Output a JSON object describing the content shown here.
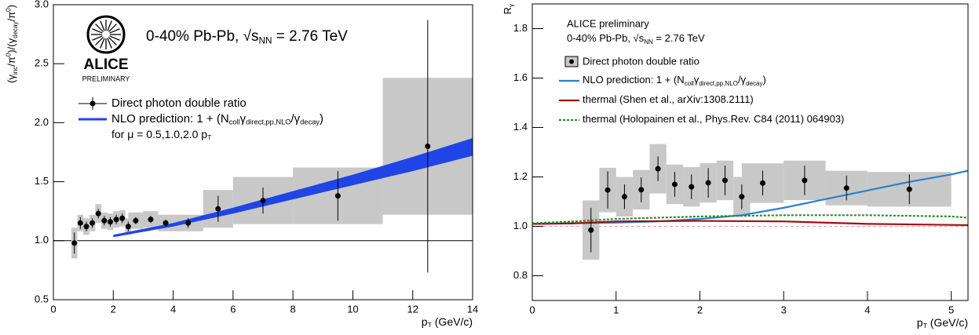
{
  "chart_data": [
    {
      "type": "errorbar",
      "logo": {
        "title": "ALICE",
        "subtitle": "PRELIMINARY"
      },
      "annotation_parts": [
        "0-40%  Pb-Pb, √s",
        "NN",
        " = 2.76 TeV"
      ],
      "xlabel_parts": [
        "p",
        "T",
        " (GeV/c)"
      ],
      "ylabel_parts": [
        "(γ",
        "inc",
        "/π",
        "0",
        ")/(γ",
        "decay",
        "/π",
        "0",
        ")"
      ],
      "xlim": [
        0,
        14
      ],
      "ylim": [
        0.5,
        3.0
      ],
      "xticks": [
        0,
        2,
        4,
        6,
        8,
        10,
        12,
        14
      ],
      "yticks": [
        0.5,
        {
          "value": 1,
          "label": "1.0"
        },
        1.5,
        {
          "value": 2,
          "label": "2.0"
        },
        2.5,
        {
          "value": 3,
          "label": "3.0"
        }
      ],
      "hline": 1,
      "series": [
        {
          "name": "Direct photon double ratio",
          "color": "#000000",
          "sys_color": "#c8c8c8",
          "x": [
            0.7,
            0.9,
            1.1,
            1.3,
            1.5,
            1.7,
            1.9,
            2.1,
            2.3,
            2.5,
            2.75,
            3.25,
            3.75,
            4.5,
            5.5,
            7,
            9.5,
            12.5
          ],
          "values": [
            0.98,
            1.15,
            1.12,
            1.15,
            1.23,
            1.17,
            1.16,
            1.18,
            1.19,
            1.12,
            1.17,
            1.18,
            1.15,
            1.15,
            1.27,
            1.34,
            1.38,
            1.8
          ],
          "errors": [
            0.09,
            0.05,
            0.04,
            0.04,
            0.04,
            0.04,
            0.04,
            0.04,
            0.04,
            0.04,
            0.03,
            0.03,
            0.03,
            0.04,
            0.11,
            0.11,
            0.21,
            1.07
          ],
          "sys_errors": [
            0.13,
            0.07,
            0.07,
            0.07,
            0.08,
            0.07,
            0.07,
            0.07,
            0.07,
            0.07,
            0.07,
            0.07,
            0.07,
            0.07,
            0.16,
            0.2,
            0.24,
            0.58
          ],
          "xerr": [
            0.1,
            0.1,
            0.1,
            0.1,
            0.1,
            0.1,
            0.1,
            0.1,
            0.1,
            0.1,
            0.25,
            0.25,
            0.25,
            0.5,
            0.5,
            1,
            1.5,
            1.5
          ]
        }
      ],
      "band": {
        "name_parts": [
          "NLO prediction: 1 + (N",
          "coll",
          "γ",
          "direct,pp,NLO",
          "/γ",
          "decay",
          ")"
        ],
        "note_parts": [
          "for μ = 0.5,1.0,2.0 p",
          "T"
        ],
        "color": "#1f45e6",
        "x": [
          2,
          4,
          6,
          8,
          10,
          12,
          14
        ],
        "low": [
          1.03,
          1.12,
          1.23,
          1.35,
          1.47,
          1.59,
          1.72
        ],
        "high": [
          1.05,
          1.15,
          1.28,
          1.42,
          1.56,
          1.71,
          1.87
        ]
      }
    },
    {
      "type": "errorbar",
      "annotation": "ALICE preliminary",
      "annotation_parts": [
        "0-40% Pb-Pb, √s",
        "NN",
        " = 2.76 TeV"
      ],
      "xlabel_parts": [
        "p",
        "T",
        " (GeV/c)"
      ],
      "ylabel_parts": [
        "R",
        "γ"
      ],
      "xlim": [
        0,
        5.2
      ],
      "ylim": [
        0.7,
        1.9
      ],
      "xticks": [
        0,
        1,
        2,
        3,
        4,
        5
      ],
      "yticks": [
        0.8,
        {
          "value": 1,
          "label": "1.0"
        },
        1.2,
        1.4,
        1.6,
        1.8
      ],
      "hline": 1,
      "series": [
        {
          "name": "Direct photon double ratio",
          "color": "#000000",
          "sys_color": "#c8c8c8",
          "x": [
            0.7,
            0.9,
            1.1,
            1.3,
            1.5,
            1.7,
            1.9,
            2.1,
            2.3,
            2.5,
            2.75,
            3.25,
            3.75,
            4.5
          ],
          "values": [
            0.985,
            1.147,
            1.12,
            1.148,
            1.233,
            1.17,
            1.16,
            1.176,
            1.186,
            1.12,
            1.175,
            1.186,
            1.155,
            1.15
          ],
          "errors": [
            0.09,
            0.075,
            0.05,
            0.05,
            0.05,
            0.05,
            0.05,
            0.06,
            0.06,
            0.05,
            0.05,
            0.06,
            0.05,
            0.06
          ],
          "sys_errors": [
            0.12,
            0.09,
            0.08,
            0.08,
            0.1,
            0.08,
            0.08,
            0.08,
            0.08,
            0.08,
            0.08,
            0.08,
            0.07,
            0.07
          ],
          "xerr": [
            0.1,
            0.1,
            0.1,
            0.1,
            0.1,
            0.1,
            0.1,
            0.1,
            0.1,
            0.1,
            0.25,
            0.25,
            0.25,
            0.5
          ]
        }
      ],
      "curves": [
        {
          "name_parts": [
            "NLO prediction: 1 + (N",
            "coll",
            "γ",
            "direct,pp,NLO",
            "/γ",
            "decay",
            ")"
          ],
          "color": "#2a7fcf",
          "dotted": false,
          "x": [
            0,
            0.5,
            1,
            1.5,
            2,
            2.5,
            3,
            3.5,
            4,
            4.5,
            5,
            5.2
          ],
          "values": [
            1.01,
            1.013,
            1.015,
            1.02,
            1.03,
            1.045,
            1.075,
            1.11,
            1.145,
            1.18,
            1.21,
            1.225
          ]
        },
        {
          "name_parts": [
            "thermal (Shen et al., arXiv:1308.2111)"
          ],
          "color": "#a01010",
          "dotted": false,
          "x": [
            0,
            0.5,
            1,
            2,
            3,
            4,
            5.2
          ],
          "values": [
            1.01,
            1.012,
            1.02,
            1.022,
            1.02,
            1.01,
            1.005
          ]
        },
        {
          "name_parts": [
            "thermal (Holopainen et al., Phys.Rev. C84 (2011) 064903)"
          ],
          "color": "#2a8a2a",
          "dotted": true,
          "x": [
            0,
            0.5,
            1,
            2,
            3,
            4,
            5,
            5.2
          ],
          "values": [
            1.012,
            1.02,
            1.03,
            1.04,
            1.045,
            1.045,
            1.04,
            1.035
          ]
        }
      ]
    }
  ]
}
